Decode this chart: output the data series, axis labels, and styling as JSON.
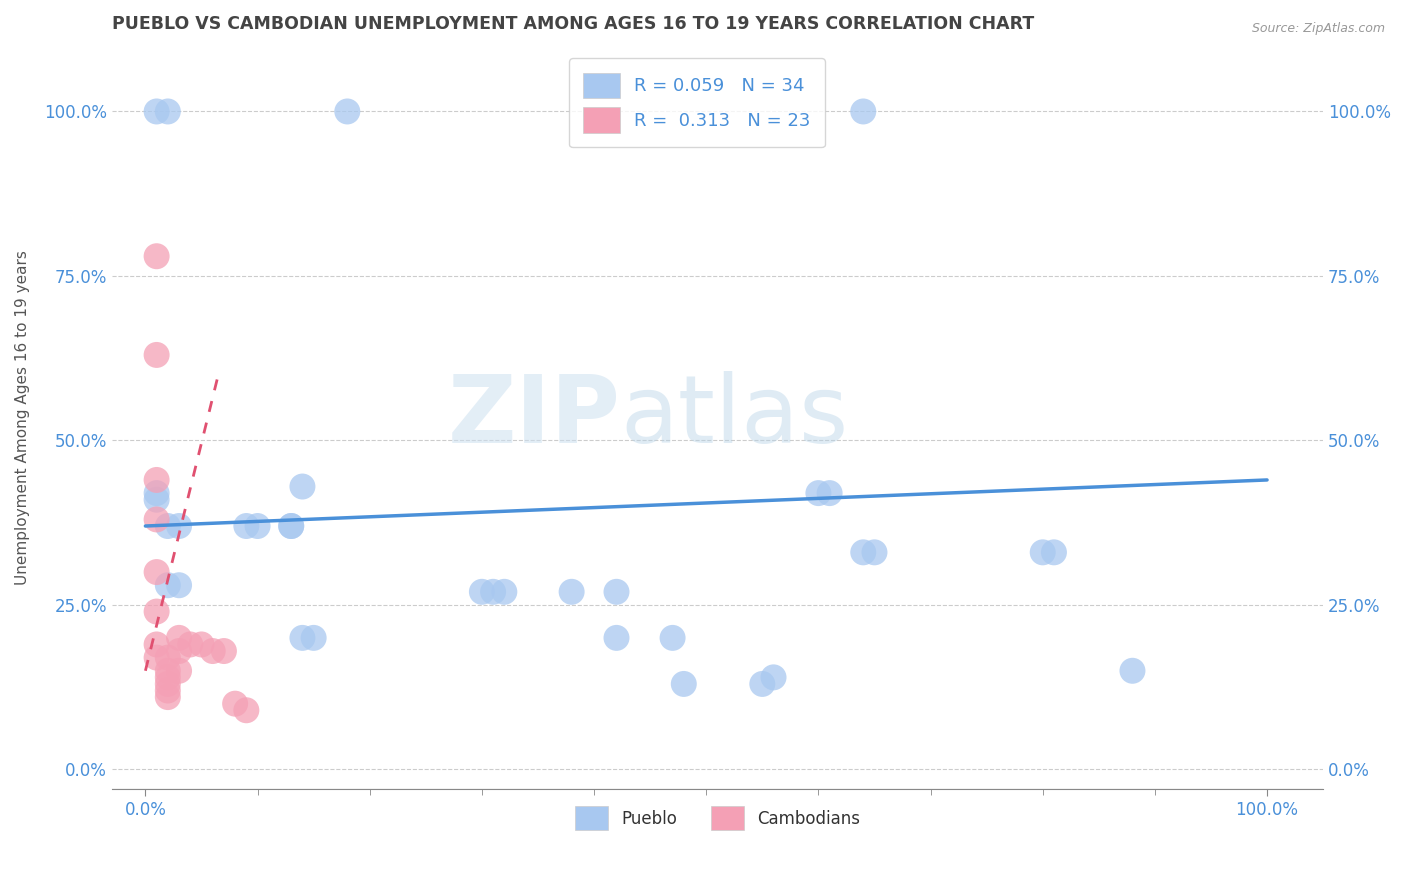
{
  "title": "PUEBLO VS CAMBODIAN UNEMPLOYMENT AMONG AGES 16 TO 19 YEARS CORRELATION CHART",
  "source": "Source: ZipAtlas.com",
  "ylabel": "Unemployment Among Ages 16 to 19 years",
  "xlim": [
    -0.03,
    1.05
  ],
  "ylim": [
    -0.03,
    1.1
  ],
  "xticks": [
    0.0,
    1.0
  ],
  "xticklabels": [
    "0.0%",
    "100.0%"
  ],
  "yticks": [
    0.0,
    0.25,
    0.5,
    0.75,
    1.0
  ],
  "yticklabels": [
    "0.0%",
    "25.0%",
    "50.0%",
    "75.0%",
    "100.0%"
  ],
  "pueblo_R": 0.059,
  "pueblo_N": 34,
  "cambodian_R": 0.313,
  "cambodian_N": 23,
  "pueblo_color": "#a8c8f0",
  "cambodian_color": "#f4a0b5",
  "pueblo_line_color": "#4a90d9",
  "cambodian_line_color": "#e05070",
  "watermark_zip": "ZIP",
  "watermark_atlas": "atlas",
  "pueblo_scatter_x": [
    0.01,
    0.02,
    0.18,
    0.64,
    0.01,
    0.01,
    0.02,
    0.03,
    0.09,
    0.1,
    0.13,
    0.13,
    0.14,
    0.02,
    0.03,
    0.14,
    0.15,
    0.3,
    0.31,
    0.32,
    0.38,
    0.42,
    0.42,
    0.47,
    0.48,
    0.55,
    0.56,
    0.64,
    0.65,
    0.8,
    0.81,
    0.6,
    0.61,
    0.88
  ],
  "pueblo_scatter_y": [
    1.0,
    1.0,
    1.0,
    1.0,
    0.42,
    0.41,
    0.37,
    0.37,
    0.37,
    0.37,
    0.37,
    0.37,
    0.43,
    0.28,
    0.28,
    0.2,
    0.2,
    0.27,
    0.27,
    0.27,
    0.27,
    0.27,
    0.2,
    0.2,
    0.13,
    0.13,
    0.14,
    0.33,
    0.33,
    0.33,
    0.33,
    0.42,
    0.42,
    0.15
  ],
  "cambodian_scatter_x": [
    0.01,
    0.01,
    0.01,
    0.01,
    0.01,
    0.01,
    0.01,
    0.01,
    0.02,
    0.02,
    0.02,
    0.02,
    0.02,
    0.02,
    0.03,
    0.03,
    0.03,
    0.04,
    0.05,
    0.06,
    0.07,
    0.08,
    0.09
  ],
  "cambodian_scatter_y": [
    0.78,
    0.63,
    0.44,
    0.38,
    0.3,
    0.24,
    0.19,
    0.17,
    0.17,
    0.15,
    0.14,
    0.13,
    0.12,
    0.11,
    0.2,
    0.18,
    0.15,
    0.19,
    0.19,
    0.18,
    0.18,
    0.1,
    0.09
  ],
  "pueblo_trendline_x": [
    0.0,
    1.0
  ],
  "pueblo_trendline_y": [
    0.37,
    0.44
  ],
  "cambodian_trendline_x": [
    0.0,
    0.065
  ],
  "cambodian_trendline_y": [
    0.15,
    0.6
  ],
  "background_color": "#ffffff",
  "grid_color": "#cccccc",
  "title_color": "#444444",
  "axis_label_color": "#555555",
  "tick_label_color": "#4a90d9"
}
